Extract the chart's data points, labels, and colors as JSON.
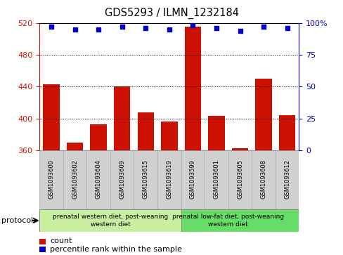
{
  "title": "GDS5293 / ILMN_1232184",
  "samples": [
    "GSM1093600",
    "GSM1093602",
    "GSM1093604",
    "GSM1093609",
    "GSM1093615",
    "GSM1093619",
    "GSM1093599",
    "GSM1093601",
    "GSM1093605",
    "GSM1093608",
    "GSM1093612"
  ],
  "counts": [
    443,
    370,
    393,
    440,
    408,
    396,
    515,
    403,
    363,
    450,
    404
  ],
  "percentiles": [
    97,
    95,
    95,
    97,
    96,
    95,
    98,
    96,
    94,
    97,
    96
  ],
  "ylim_left": [
    360,
    520
  ],
  "yticks_left": [
    360,
    400,
    440,
    480,
    520
  ],
  "ylim_right": [
    0,
    100
  ],
  "yticks_right": [
    0,
    25,
    50,
    75,
    100
  ],
  "bar_color": "#cc1100",
  "dot_color": "#0000cc",
  "group1_label": "prenatal western diet, post-weaning\nwestern diet",
  "group2_label": "prenatal low-fat diet, post-weaning\nwestern diet",
  "group1_count": 6,
  "protocol_label": "protocol",
  "legend_count": "count",
  "legend_pct": "percentile rank within the sample",
  "group1_bg": "#c8f0a0",
  "group2_bg": "#66dd66",
  "xticklabel_bg": "#d0d0d0",
  "xticklabel_edge": "#aaaaaa"
}
